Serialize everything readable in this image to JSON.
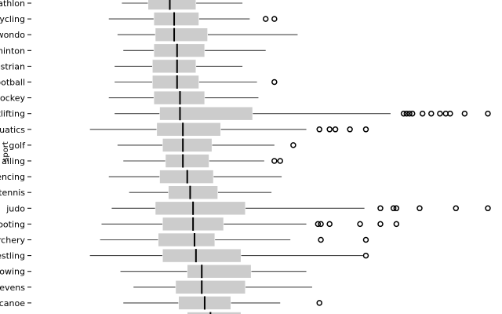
{
  "chart_data": {
    "type": "boxplot",
    "orientation": "horizontal",
    "title": "",
    "xlabel": "",
    "ylabel": "sport",
    "xlim": [
      0,
      310
    ],
    "grid": false,
    "legend": "none",
    "colors": {
      "box": "#cccccc",
      "median": "#000000",
      "whisker": "#444444",
      "outlier": "#000000"
    },
    "categories": [
      {
        "label": "athlon",
        "whislo": 58,
        "q1": 76,
        "med": 91,
        "q3": 109,
        "whishi": 141,
        "fliers": []
      },
      {
        "label": "cycling",
        "whislo": 49,
        "q1": 80,
        "med": 94,
        "q3": 111,
        "whishi": 146,
        "fliers": [
          157,
          163
        ]
      },
      {
        "label": "wondo",
        "whislo": 55,
        "q1": 81,
        "med": 94,
        "q3": 117,
        "whishi": 179,
        "fliers": []
      },
      {
        "label": "minton",
        "whislo": 59,
        "q1": 80,
        "med": 96,
        "q3": 115,
        "whishi": 157,
        "fliers": []
      },
      {
        "label": "estrian",
        "whislo": 53,
        "q1": 79,
        "med": 96,
        "q3": 109,
        "whishi": 141,
        "fliers": []
      },
      {
        "label": "ootball",
        "whislo": 53,
        "q1": 79,
        "med": 96,
        "q3": 111,
        "whishi": 151,
        "fliers": [
          163
        ]
      },
      {
        "label": "hockey",
        "whislo": 49,
        "q1": 80,
        "med": 98,
        "q3": 115,
        "whishi": 152,
        "fliers": []
      },
      {
        "label": "tlifting",
        "whislo": 53,
        "q1": 84,
        "med": 98,
        "q3": 148,
        "whishi": 243,
        "fliers": [
          252,
          254,
          256,
          258,
          265,
          271,
          277,
          281,
          284,
          294,
          310
        ]
      },
      {
        "label": "quatics",
        "whislo": 36,
        "q1": 82,
        "med": 100,
        "q3": 126,
        "whishi": 185,
        "fliers": [
          194,
          201,
          205,
          215,
          226
        ]
      },
      {
        "label": "golf",
        "whislo": 55,
        "q1": 86,
        "med": 100,
        "q3": 120,
        "whishi": 163,
        "fliers": [
          176
        ]
      },
      {
        "label": "ailing",
        "whislo": 59,
        "q1": 88,
        "med": 100,
        "q3": 118,
        "whishi": 156,
        "fliers": [
          163,
          167
        ]
      },
      {
        "label": "encing",
        "whislo": 49,
        "q1": 84,
        "med": 103,
        "q3": 121,
        "whishi": 168,
        "fliers": []
      },
      {
        "label": "tennis",
        "whislo": 63,
        "q1": 90,
        "med": 105,
        "q3": 124,
        "whishi": 161,
        "fliers": []
      },
      {
        "label": "judo",
        "whislo": 51,
        "q1": 81,
        "med": 107,
        "q3": 143,
        "whishi": 225,
        "fliers": [
          236,
          245,
          247,
          263,
          288,
          310
        ]
      },
      {
        "label": "ooting",
        "whislo": 44,
        "q1": 86,
        "med": 107,
        "q3": 128,
        "whishi": 185,
        "fliers": [
          193,
          195,
          201,
          222,
          236,
          247
        ]
      },
      {
        "label": "rchery",
        "whislo": 43,
        "q1": 83,
        "med": 108,
        "q3": 122,
        "whishi": 174,
        "fliers": [
          195,
          226
        ]
      },
      {
        "label": "estling",
        "whislo": 36,
        "q1": 86,
        "med": 109,
        "q3": 140,
        "whishi": 224,
        "fliers": [
          226
        ]
      },
      {
        "label": "rowing",
        "whislo": 57,
        "q1": 103,
        "med": 113,
        "q3": 147,
        "whishi": 185,
        "fliers": []
      },
      {
        "label": "sevens",
        "whislo": 66,
        "q1": 95,
        "med": 113,
        "q3": 143,
        "whishi": 189,
        "fliers": []
      },
      {
        "label": "canoe",
        "whislo": 59,
        "q1": 97,
        "med": 115,
        "q3": 133,
        "whishi": 167,
        "fliers": [
          194
        ]
      },
      {
        "label": "",
        "whislo": 66,
        "q1": 103,
        "med": 119,
        "q3": 140,
        "whishi": 185,
        "fliers": []
      }
    ]
  }
}
